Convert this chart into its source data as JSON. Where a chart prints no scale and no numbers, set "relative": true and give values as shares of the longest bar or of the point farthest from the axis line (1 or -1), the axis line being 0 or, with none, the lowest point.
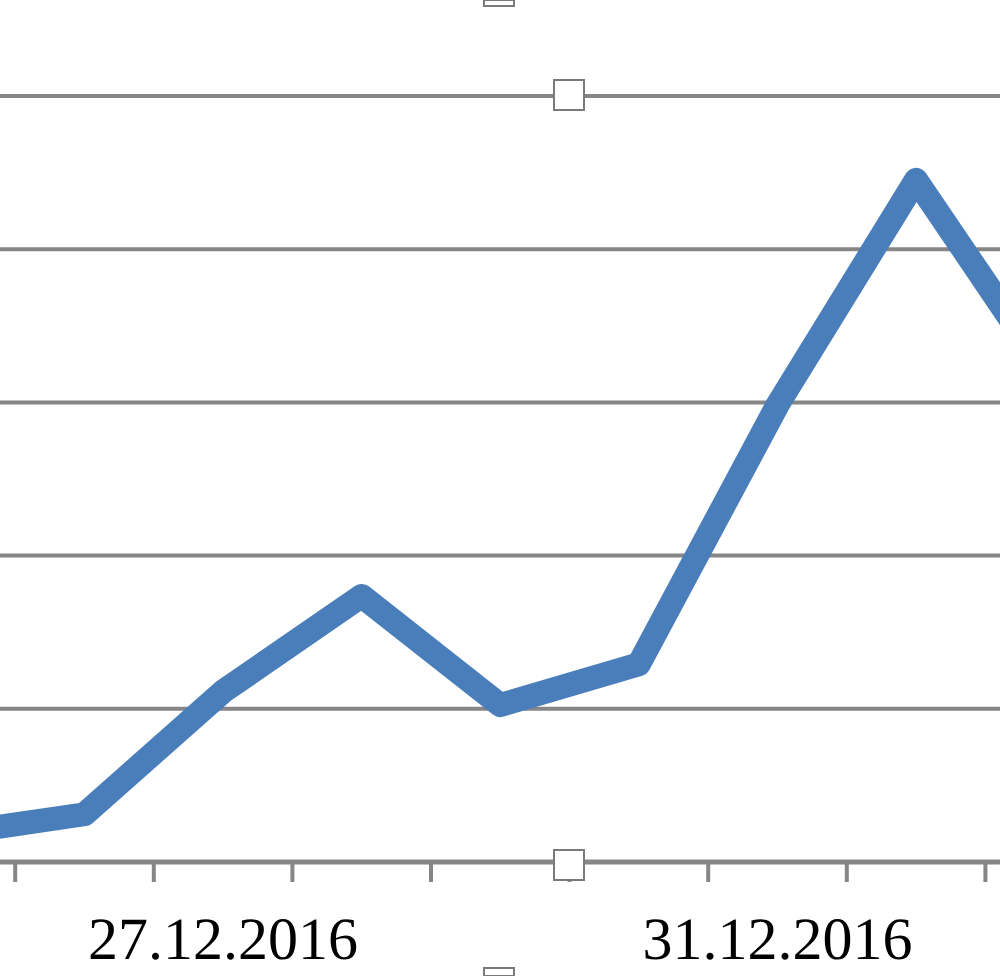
{
  "chart_data": {
    "type": "line",
    "relative": true,
    "categories": [
      null,
      null,
      "27.12.2016",
      null,
      null,
      null,
      "31.12.2016",
      null,
      null
    ],
    "series": [
      {
        "color": "#4a7ebb",
        "values": [
          0.04,
          0.07,
          0.25,
          0.39,
          0.23,
          0.29,
          0.67,
          1,
          0.7
        ]
      }
    ],
    "grid": "y",
    "line_style": "solid"
  }
}
